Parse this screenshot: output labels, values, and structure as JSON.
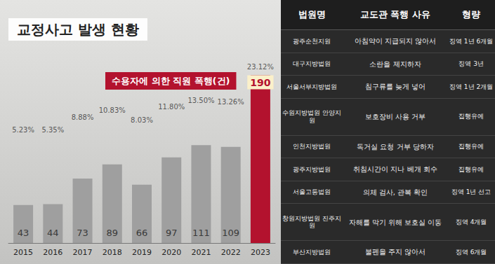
{
  "chart_data": {
    "type": "bar",
    "title": "교정사고 발생 현황",
    "categories": [
      "2015",
      "2016",
      "2017",
      "2018",
      "2019",
      "2020",
      "2021",
      "2022",
      "2023"
    ],
    "series": [
      {
        "name": "수용자에 의한 직원 폭행(건)",
        "type": "bar",
        "values": [
          43,
          44,
          73,
          89,
          66,
          97,
          111,
          109,
          190
        ],
        "colors": [
          "#9f9f9f",
          "#9f9f9f",
          "#9f9f9f",
          "#9f9f9f",
          "#9f9f9f",
          "#9f9f9f",
          "#9f9f9f",
          "#9f9f9f",
          "#b3122e"
        ],
        "data_labels": true
      },
      {
        "type": "scatter",
        "axis": "y2",
        "color": "#333333",
        "values": [
          5.23,
          5.35,
          8.88,
          10.83,
          8.03,
          11.8,
          13.5,
          13.26,
          23.12
        ],
        "value_labels": [
          "5.23%",
          "5.35%",
          "8.88%",
          "10.83%",
          "8.03%",
          "11.80%",
          "13.50%",
          "13.26%",
          "23.12%"
        ],
        "data_labels": true
      }
    ],
    "ylim": [
      0,
      200
    ],
    "yticks": [
      0,
      100,
      200
    ],
    "y2lim": [
      -25,
      25
    ],
    "y2ticks": [
      -25,
      0,
      25
    ],
    "grid": false,
    "tick_labels": "x"
  },
  "table": {
    "header": [
      "법원명",
      "교도관 폭행 사유",
      "형량"
    ],
    "rows": [
      [
        "광주순천지원",
        "아침약이 지급되지 않아서",
        "징역 1년 6개월"
      ],
      [
        "대구지방법원",
        "소란을 제지하자",
        "징역 3년"
      ],
      [
        "서울서부지방법원",
        "침구류를 늦게 넣어",
        "징역 1년 2개월"
      ],
      [
        "수원지방법원 안양지원",
        "보호장비 사용 거부",
        "집행유예"
      ],
      [
        "인천지방법원",
        "독거실 요청 거부 당하자",
        "집행유예"
      ],
      [
        "광주지방법원",
        "취침시간이 지나 베개 회수",
        "집행유예"
      ],
      [
        "서울고등법원",
        "의체 검사, 관복 확인",
        "징역 1년 선고"
      ],
      [
        "창원지방법원 진주지원",
        "자해를 막기 위해 보호실 이동",
        "징역 4개월"
      ],
      [
        "부산지방법원",
        "불펜을 주지 않아서",
        "징역 6개월"
      ]
    ]
  }
}
